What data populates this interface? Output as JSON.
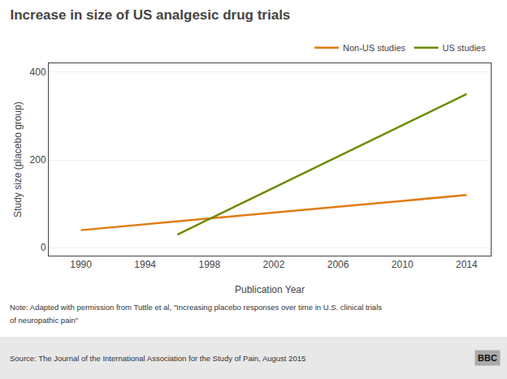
{
  "chart_data": {
    "type": "line",
    "title": "Increase in size of US analgesic drug trials",
    "y_label": "Study size (placebo group)",
    "x_label": "Publication Year",
    "series": [
      {
        "name": "Non-US studies",
        "color": "#E07B10",
        "x": [
          1990,
          2014
        ],
        "values": [
          40,
          120
        ]
      },
      {
        "name": "US studies",
        "color": "#6B8C00",
        "x": [
          1996,
          2014
        ],
        "values": [
          30,
          350
        ]
      }
    ],
    "xlim": [
      1988.0,
      2015.5
    ],
    "xticks": [
      1990,
      1994,
      1998,
      2002,
      2006,
      2010,
      2014
    ],
    "ylim": [
      -18,
      420
    ],
    "yticks": [
      0,
      200,
      400
    ],
    "grid": "y",
    "legend": "upper right",
    "annotations": [
      "Note: Adapted with permission from Tuttle et al, \"Increasing placebo responses over time in U.S. clinical trials",
      "of neuropathic pain\"",
      "Source: The Journal of the International Association for the Study of Pain, August 2015",
      "BBC"
    ]
  }
}
